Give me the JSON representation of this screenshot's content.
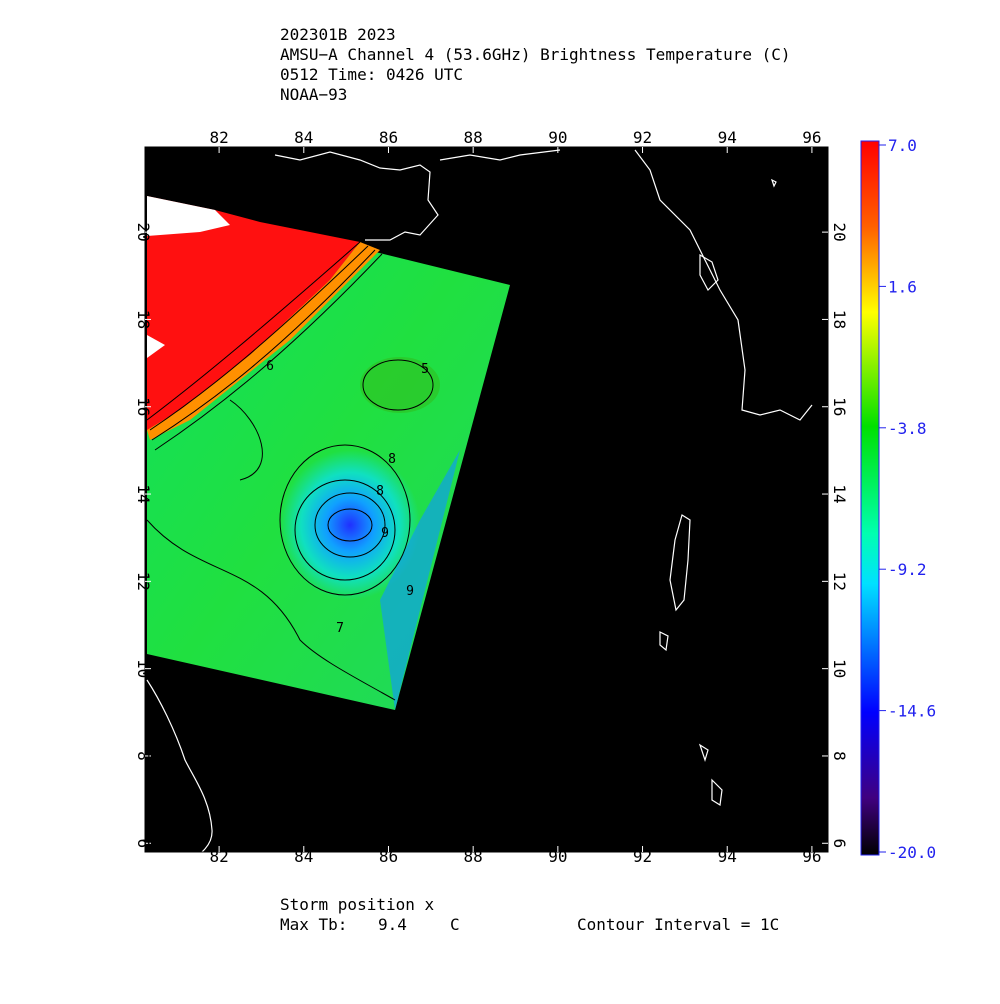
{
  "title_lines": [
    "202301B 2023",
    "AMSU−A Channel 4 (53.6GHz) Brightness Temperature (C)",
    "0512 Time: 0426 UTC",
    "NOAA−93"
  ],
  "map": {
    "xlim": [
      80.25,
      96.38
    ],
    "ylim": [
      5.8,
      21.95
    ],
    "xticks": [
      82,
      84,
      86,
      88,
      90,
      92,
      94,
      96
    ],
    "yticks": [
      6,
      8,
      10,
      12,
      14,
      16,
      18,
      20
    ],
    "contour_labels": [
      "6",
      "5",
      "8",
      "8",
      "9",
      "9",
      "7"
    ]
  },
  "colorbar": {
    "lim": [
      -20,
      7
    ],
    "ticks": [
      {
        "value": 7,
        "label": "7.0"
      },
      1.6,
      -3.8,
      -9.2,
      -14.6,
      {
        "value": -20,
        "label": "-20.0"
      }
    ]
  },
  "footer": {
    "storm": "Storm position x",
    "max_label": "Max Tb:",
    "max_value": 9.4,
    "max_unit": "C",
    "interval": "Contour Interval = 1C"
  }
}
